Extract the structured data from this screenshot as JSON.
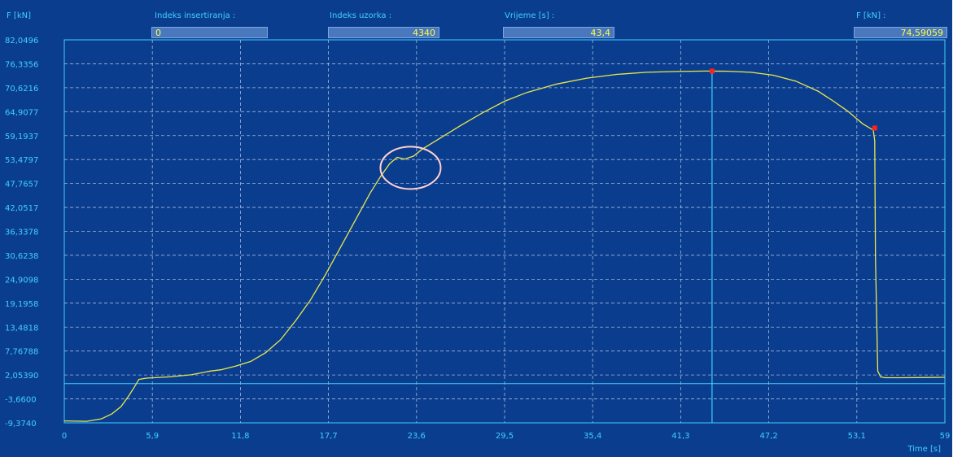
{
  "header": {
    "y_unit": "F [kN]",
    "fields": [
      {
        "label": "Indeks insertiranja :",
        "value": "0"
      },
      {
        "label": "Indeks uzorka :",
        "value": "4340"
      },
      {
        "label": "Vrijeme [s] :",
        "value": "43,4"
      },
      {
        "label": "F [kN] :",
        "value": "74,59059"
      }
    ]
  },
  "colors": {
    "background": "#0b3d8f",
    "axis": "#3fd0ff",
    "grid": "#9db8e0",
    "curve": "#e8e84a",
    "marker": "#ff2020",
    "highlight_circle": "#ffd0d0"
  },
  "chart_data": {
    "type": "line",
    "title": "",
    "xlabel": "Time [s]",
    "ylabel": "F [kN]",
    "xlim": [
      0,
      59
    ],
    "ylim": [
      -9.374,
      82.0496
    ],
    "grid": true,
    "x_tick_labels": [
      "0",
      "5,9",
      "11,8",
      "17,7",
      "23,6",
      "29,5",
      "35,4",
      "41,3",
      "47,2",
      "53,1",
      "59"
    ],
    "x_tick_values": [
      0,
      5.9,
      11.8,
      17.7,
      23.6,
      29.5,
      35.4,
      41.3,
      47.2,
      53.1,
      59
    ],
    "y_tick_labels": [
      "82,0496",
      "76,3356",
      "70,6216",
      "64,9077",
      "59,1937",
      "53,4797",
      "47,7657",
      "42,0517",
      "36,3378",
      "30,6238",
      "24,9098",
      "19,1958",
      "13,4818",
      "7,76788",
      "2,05390",
      "-3,6600",
      "-9,3740"
    ],
    "y_tick_values": [
      82.0496,
      76.3356,
      70.6216,
      64.9077,
      59.1937,
      53.4797,
      47.7657,
      42.0517,
      36.3378,
      30.6238,
      24.9098,
      19.1958,
      13.4818,
      7.76788,
      2.0539,
      -3.66,
      -9.374
    ],
    "baseline_y": 0,
    "cursor_x": 43.4,
    "series": [
      {
        "x": [
          0,
          1.5,
          2.5,
          3.2,
          3.8,
          4.3,
          4.7,
          5.0,
          5.5,
          7.0,
          8.5,
          9.8,
          10.5,
          11.5,
          12.5,
          13.5,
          14.5,
          15.5,
          16.5,
          17.5,
          18.5,
          19.5,
          20.5,
          21.2,
          21.8,
          22.3,
          22.8,
          23.4,
          24.0,
          25.0,
          26.5,
          28.0,
          29.5,
          31.0,
          33.0,
          35.0,
          37.0,
          39.0,
          41.0,
          43.0,
          44.5,
          46.0,
          47.5,
          49.0,
          50.5,
          51.5,
          52.5,
          53.0,
          53.5,
          54.2,
          54.3,
          54.35,
          54.5,
          54.7,
          55.0,
          56.0,
          58.0,
          59.0
        ],
        "y": [
          -8.9,
          -9.0,
          -8.4,
          -7.2,
          -5.5,
          -3.0,
          -0.8,
          1.0,
          1.3,
          1.6,
          2.1,
          3.0,
          3.3,
          4.2,
          5.3,
          7.4,
          10.5,
          15.0,
          20.0,
          26.0,
          32.5,
          39.0,
          45.5,
          49.5,
          52.5,
          54.0,
          53.6,
          54.3,
          56.0,
          58.2,
          61.5,
          64.6,
          67.4,
          69.5,
          71.5,
          72.9,
          73.8,
          74.3,
          74.5,
          74.6,
          74.55,
          74.3,
          73.6,
          72.2,
          69.8,
          67.5,
          65.0,
          63.5,
          62.0,
          60.5,
          58.0,
          30.0,
          3.0,
          1.6,
          1.4,
          1.4,
          1.45,
          1.5
        ]
      }
    ],
    "markers": [
      {
        "x": 43.4,
        "y": 74.59
      },
      {
        "x": 54.3,
        "y": 61.0
      }
    ],
    "annotations": [
      {
        "type": "circle",
        "x": 23.2,
        "y": 51.5
      }
    ]
  }
}
